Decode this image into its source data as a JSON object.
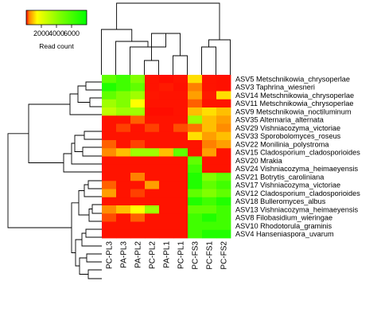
{
  "chart_data": {
    "type": "heatmap",
    "columns": [
      "PC-PL3",
      "PA-PL3",
      "PA-PL2",
      "PC-PL2",
      "PA-PL1",
      "PC-PL1",
      "PC-FS3",
      "PC-FS1",
      "PC-FS2"
    ],
    "rows": [
      "ASV5 Metschnikowia_chrysoperlae",
      "ASV3 Taphrina_wiesneri",
      "ASV14 Metschnikowia_chrysoperlae",
      "ASV11 Metschnikowia_chrysoperlae",
      "ASV9 Metschnikowia_noctiluminum",
      "ASV35 Alternaria_alternata",
      "ASV29 Vishniacozyma_victoriae",
      "ASV33 Sporobolomyces_roseus",
      "ASV22 Monilinia_polystroma",
      "ASV15 Cladosporium_cladosporioides",
      "ASV20 Mrakia",
      "ASV24 Vishniacozyma_heimaeyensis",
      "ASV21 Botrytis_caroliniana",
      "ASV17 Vishniacozyma_victoriae",
      "ASV12 Cladosporium_cladosporioides",
      "ASV18 Bulleromyces_albus",
      "ASV13 Vishniacozyma_heimaeyensis",
      "ASV8 Filobasidium_wieringae",
      "ASV10 Rhodotorula_graminis",
      "ASV4 Hanseniaspora_uvarum"
    ],
    "values": [
      [
        6500,
        7000,
        6000,
        300,
        200,
        300,
        3500,
        300,
        250
      ],
      [
        7500,
        7000,
        6500,
        300,
        400,
        250,
        2000,
        300,
        250
      ],
      [
        6500,
        6000,
        5500,
        350,
        300,
        300,
        2500,
        400,
        3500
      ],
      [
        5500,
        6000,
        4000,
        300,
        300,
        300,
        1500,
        300,
        300
      ],
      [
        5000,
        5500,
        5500,
        200,
        200,
        300,
        3000,
        3500,
        3000
      ],
      [
        300,
        300,
        1500,
        300,
        300,
        300,
        5500,
        3000,
        2500
      ],
      [
        300,
        1000,
        300,
        1000,
        300,
        1200,
        1800,
        3000,
        2200
      ],
      [
        300,
        300,
        300,
        300,
        300,
        300,
        3500,
        2500,
        3000
      ],
      [
        1500,
        300,
        1000,
        300,
        300,
        300,
        300,
        2000,
        2500
      ],
      [
        2200,
        3000,
        5500,
        5500,
        3000,
        6500,
        300,
        2500,
        300
      ],
      [
        300,
        300,
        300,
        300,
        300,
        300,
        6500,
        300,
        300
      ],
      [
        300,
        300,
        300,
        300,
        300,
        300,
        7000,
        300,
        300
      ],
      [
        300,
        300,
        2000,
        300,
        300,
        300,
        7500,
        6000,
        6500
      ],
      [
        1500,
        300,
        300,
        2500,
        300,
        300,
        7500,
        6500,
        7000
      ],
      [
        2500,
        300,
        1000,
        300,
        300,
        300,
        6500,
        6000,
        6500
      ],
      [
        300,
        300,
        300,
        300,
        300,
        300,
        7500,
        7000,
        7500
      ],
      [
        2200,
        3000,
        4000,
        5500,
        300,
        300,
        6500,
        6500,
        7000
      ],
      [
        1200,
        300,
        1500,
        300,
        300,
        300,
        7000,
        7500,
        7000
      ],
      [
        300,
        300,
        300,
        300,
        300,
        300,
        7000,
        7000,
        7000
      ],
      [
        300,
        300,
        300,
        300,
        300,
        300,
        7000,
        7500,
        7500
      ]
    ],
    "legend": {
      "title": "Read count",
      "ticks": [
        2000,
        4000,
        6000
      ],
      "range": [
        0,
        8000
      ]
    },
    "colorscale": [
      "#ff0000",
      "#ffff00",
      "#00ff00"
    ]
  }
}
